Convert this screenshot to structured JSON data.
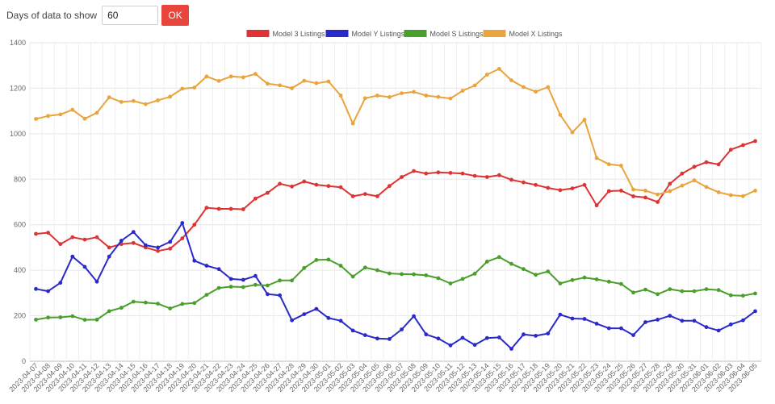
{
  "controls": {
    "days_label": "Days of data to show",
    "days_value": "60",
    "ok_label": "OK"
  },
  "chart_data": {
    "type": "line",
    "title": "",
    "xlabel": "",
    "ylabel": "",
    "ylim": [
      0,
      1400
    ],
    "yticks": [
      0,
      200,
      400,
      600,
      800,
      1000,
      1200,
      1400
    ],
    "grid": true,
    "legend": "top-center",
    "x": [
      "2023-04-07",
      "2023-04-08",
      "2023-04-09",
      "2023-04-10",
      "2023-04-11",
      "2023-04-12",
      "2023-04-13",
      "2023-04-14",
      "2023-04-15",
      "2023-04-16",
      "2023-04-17",
      "2023-04-18",
      "2023-04-19",
      "2023-04-20",
      "2023-04-21",
      "2023-04-22",
      "2023-04-23",
      "2023-04-24",
      "2023-04-25",
      "2023-04-26",
      "2023-04-27",
      "2023-04-28",
      "2023-04-29",
      "2023-04-30",
      "2023-05-01",
      "2023-05-02",
      "2023-05-03",
      "2023-05-04",
      "2023-05-05",
      "2023-05-06",
      "2023-05-07",
      "2023-05-08",
      "2023-05-09",
      "2023-05-10",
      "2023-05-11",
      "2023-05-12",
      "2023-05-13",
      "2023-05-14",
      "2023-05-15",
      "2023-05-16",
      "2023-05-17",
      "2023-05-18",
      "2023-05-19",
      "2023-05-20",
      "2023-05-21",
      "2023-05-22",
      "2023-05-23",
      "2023-05-24",
      "2023-05-25",
      "2023-05-26",
      "2023-05-27",
      "2023-05-28",
      "2023-05-29",
      "2023-05-30",
      "2023-05-31",
      "2023-06-01",
      "2023-06-02",
      "2023-06-03",
      "2023-06-04",
      "2023-06-05"
    ],
    "series": [
      {
        "name": "Model 3 Listings",
        "color": "#dd3333",
        "values": [
          560,
          565,
          515,
          545,
          535,
          545,
          500,
          515,
          520,
          500,
          485,
          495,
          540,
          600,
          675,
          670,
          670,
          668,
          715,
          740,
          780,
          768,
          790,
          776,
          770,
          765,
          725,
          735,
          725,
          770,
          810,
          836,
          825,
          830,
          828,
          825,
          815,
          810,
          818,
          798,
          786,
          775,
          762,
          752,
          760,
          775,
          685,
          748,
          750,
          725,
          720,
          700,
          780,
          825,
          855,
          875,
          865,
          930,
          950,
          968
        ]
      },
      {
        "name": "Model Y Listings",
        "color": "#2a2ac8",
        "values": [
          318,
          308,
          345,
          460,
          415,
          350,
          460,
          530,
          568,
          510,
          500,
          525,
          608,
          442,
          420,
          405,
          362,
          358,
          375,
          295,
          290,
          180,
          207,
          230,
          190,
          178,
          135,
          115,
          100,
          98,
          140,
          198,
          118,
          100,
          70,
          103,
          72,
          102,
          105,
          55,
          118,
          112,
          122,
          205,
          188,
          186,
          165,
          145,
          145,
          115,
          172,
          183,
          200,
          178,
          178,
          150,
          135,
          162,
          180,
          220
        ]
      },
      {
        "name": "Model S Listings",
        "color": "#4a9e2c",
        "values": [
          183,
          192,
          193,
          198,
          182,
          183,
          220,
          235,
          262,
          258,
          253,
          232,
          252,
          256,
          292,
          322,
          328,
          326,
          336,
          333,
          355,
          355,
          410,
          445,
          447,
          420,
          372,
          412,
          400,
          386,
          383,
          382,
          378,
          365,
          342,
          362,
          385,
          438,
          458,
          428,
          405,
          380,
          395,
          342,
          357,
          368,
          360,
          350,
          340,
          302,
          315,
          295,
          317,
          308,
          308,
          317,
          313,
          290,
          288,
          298
        ]
      },
      {
        "name": "Model X Listings",
        "color": "#e9a43c",
        "values": [
          1065,
          1078,
          1085,
          1105,
          1066,
          1092,
          1160,
          1140,
          1144,
          1130,
          1147,
          1163,
          1198,
          1203,
          1252,
          1232,
          1252,
          1248,
          1263,
          1220,
          1213,
          1200,
          1233,
          1222,
          1230,
          1168,
          1045,
          1156,
          1168,
          1161,
          1178,
          1184,
          1168,
          1162,
          1155,
          1189,
          1212,
          1260,
          1285,
          1235,
          1205,
          1185,
          1205,
          1083,
          1006,
          1062,
          893,
          866,
          860,
          755,
          750,
          733,
          748,
          772,
          795,
          766,
          743,
          730,
          726,
          750
        ]
      }
    ]
  }
}
